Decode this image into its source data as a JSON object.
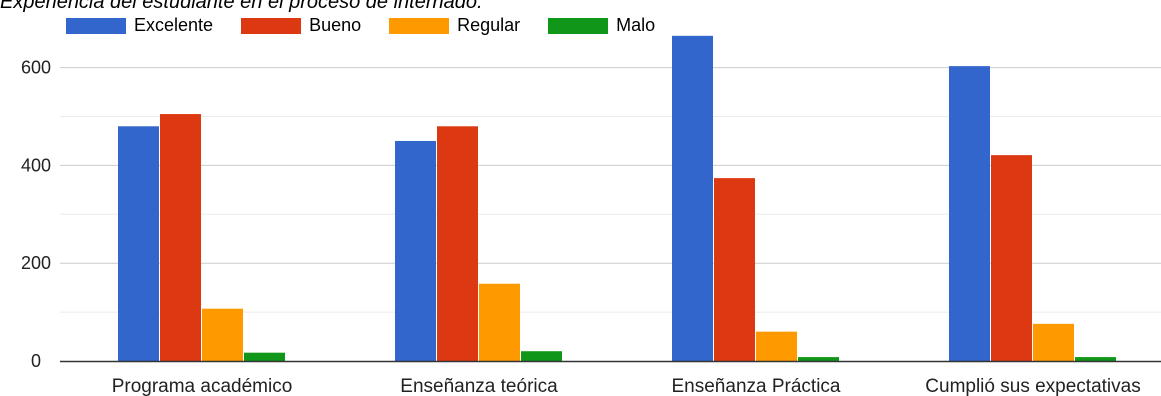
{
  "chart_data": {
    "type": "bar",
    "title": "Experiencia del estudiante en el proceso de internado.",
    "categories": [
      "Programa académico",
      "Enseñanza teórica",
      "Enseñanza Práctica",
      "Cumplió sus expectativas"
    ],
    "series": [
      {
        "name": "Excelente",
        "color": "#3366cc",
        "values": [
          480,
          450,
          665,
          603
        ]
      },
      {
        "name": "Bueno",
        "color": "#dc3912",
        "values": [
          505,
          480,
          374,
          421
        ]
      },
      {
        "name": "Regular",
        "color": "#ff9900",
        "values": [
          107,
          158,
          60,
          76
        ]
      },
      {
        "name": "Malo",
        "color": "#109618",
        "values": [
          17,
          20,
          8,
          8
        ]
      }
    ],
    "yticks": [
      0,
      200,
      400,
      600
    ],
    "ylim": [
      0,
      700
    ],
    "xlabel": "",
    "ylabel": "",
    "grid": true,
    "legend": "top-left"
  }
}
